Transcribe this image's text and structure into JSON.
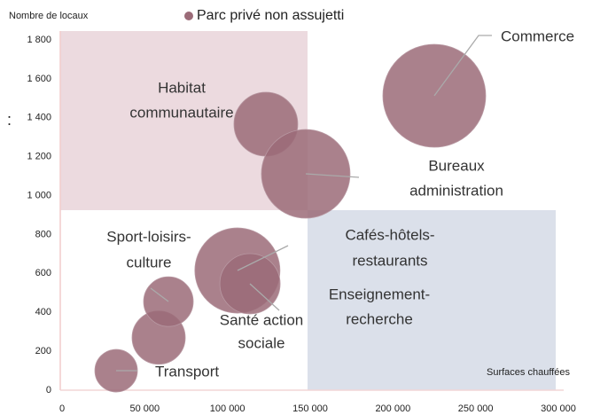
{
  "chart_data": {
    "type": "bubble",
    "title": "Parc privé non assujetti",
    "y_label": "Nombre de locaux",
    "x_label": "Surfaces chauffées",
    "extra_text": ":",
    "xlim": [
      0,
      300000
    ],
    "ylim": [
      0,
      1800
    ],
    "xticks": [
      0,
      {
        "value": 50000,
        "label": "50 000"
      },
      {
        "value": 100000,
        "label": "100 000"
      },
      {
        "value": 150000,
        "label": "150 000"
      },
      {
        "value": 200000,
        "label": "200 000"
      },
      {
        "value": 250000,
        "label": "250 000"
      },
      {
        "value": 300000,
        "label": "300 000"
      }
    ],
    "yticks": [
      0,
      200,
      400,
      600,
      800,
      {
        "value": 1000,
        "label": "1 000"
      },
      {
        "value": 1200,
        "label": "1 200"
      },
      {
        "value": 1400,
        "label": "1 400"
      },
      {
        "value": 1600,
        "label": "1 600"
      },
      {
        "value": 1800,
        "label": "1 800"
      }
    ],
    "series": [
      {
        "name": "Parc privé non assujetti",
        "color": "#9b6b78",
        "x": [
          32700,
          58400,
          64300,
          106000,
          113600,
          123200,
          147300,
          225000
        ],
        "values": [
          100,
          270,
          455,
          615,
          547,
          1367,
          1112,
          1513
        ],
        "sizes": [
          24,
          30,
          28,
          48,
          34,
          36,
          50,
          58
        ],
        "labels": [
          [
            "Transport"
          ],
          [
            "Enseignement-",
            "recherche"
          ],
          [
            "Sport-loisirs-",
            "culture"
          ],
          [
            "Cafés-hôtels-",
            "restaurants"
          ],
          [
            "Santé action",
            "sociale"
          ],
          [
            "Habitat",
            "communautaire"
          ],
          [
            "Bureaux",
            "administration"
          ],
          [
            "Commerce"
          ]
        ]
      }
    ]
  }
}
